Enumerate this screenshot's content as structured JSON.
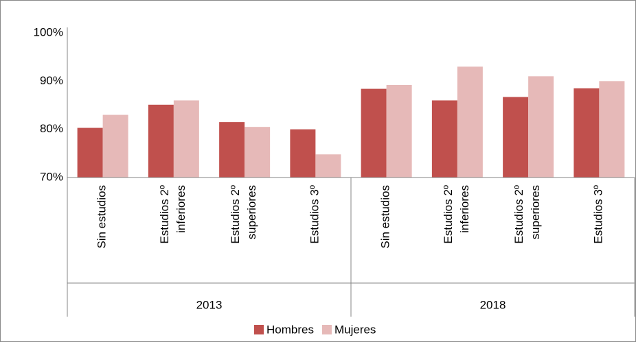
{
  "chart_data": {
    "type": "bar",
    "categories": [
      [
        "Sin estudios"
      ],
      [
        "Estudios 2º",
        "inferiores"
      ],
      [
        "Estudios 2º",
        "superiores"
      ],
      [
        "Estudios 3º"
      ],
      [
        "Sin estudios"
      ],
      [
        "Estudios 2º",
        "inferiores"
      ],
      [
        "Estudios 2º",
        "superiores"
      ],
      [
        "Estudios 3º"
      ]
    ],
    "groups": [
      "2013",
      "2018"
    ],
    "series": [
      {
        "name": "Hombres",
        "color": "#c0504d",
        "values": [
          80.3,
          85.1,
          81.5,
          80.0,
          88.4,
          86.0,
          86.7,
          88.5
        ]
      },
      {
        "name": "Mujeres",
        "color": "#e6b9b8",
        "values": [
          83.0,
          86.0,
          80.5,
          74.8,
          89.2,
          93.0,
          91.0,
          90.0
        ]
      }
    ],
    "ylim": [
      70,
      100
    ],
    "yticks": [
      {
        "value": 70,
        "label": "70%"
      },
      {
        "value": 80,
        "label": "80%"
      },
      {
        "value": 90,
        "label": "90%"
      },
      {
        "value": 100,
        "label": "100%"
      }
    ],
    "grid": false,
    "legend": "bottom"
  }
}
